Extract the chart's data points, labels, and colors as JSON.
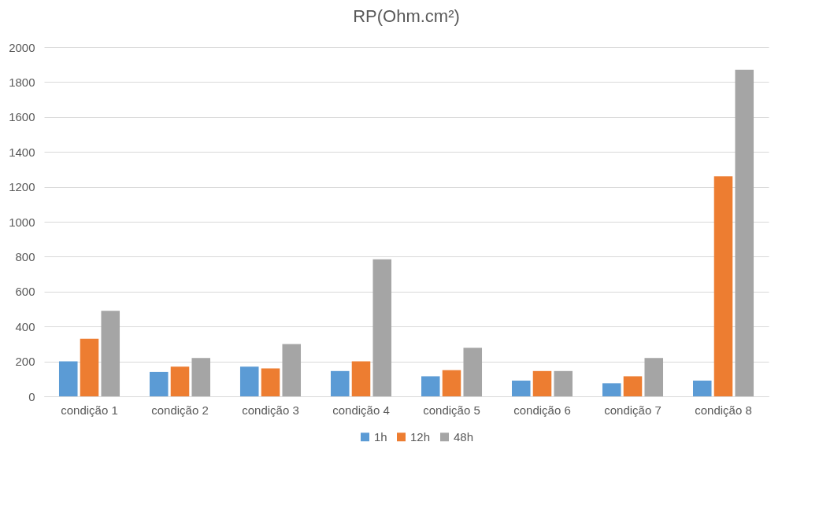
{
  "chart_data": {
    "type": "bar",
    "title": "RP(Ohm.cm²)",
    "categories": [
      "condição 1",
      "condição 2",
      "condição 3",
      "condição 4",
      "condição 5",
      "condição 6",
      "condição 7",
      "condição 8"
    ],
    "series": [
      {
        "name": "1h",
        "color": "#5b9bd5",
        "values": [
          200,
          140,
          170,
          145,
          115,
          90,
          75,
          90
        ]
      },
      {
        "name": "12h",
        "color": "#ed7d31",
        "values": [
          330,
          170,
          160,
          200,
          150,
          145,
          115,
          1260
        ]
      },
      {
        "name": "48h",
        "color": "#a5a5a5",
        "values": [
          490,
          220,
          300,
          785,
          278,
          145,
          220,
          1870
        ]
      }
    ],
    "ylim": [
      0,
      2000
    ],
    "yticks": [
      0,
      200,
      400,
      600,
      800,
      1000,
      1200,
      1400,
      1600,
      1800,
      2000
    ],
    "grid": "y",
    "legend": "bottom"
  }
}
